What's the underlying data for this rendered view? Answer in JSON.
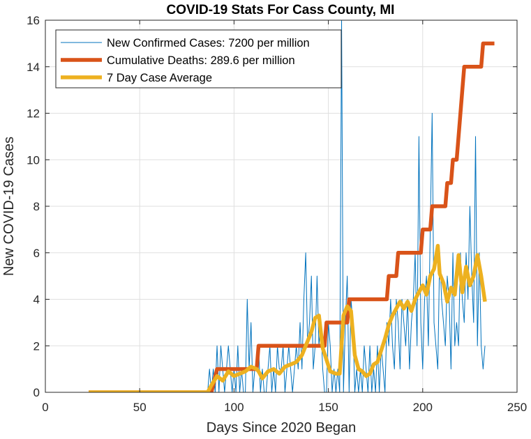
{
  "chart_data": {
    "type": "line",
    "title": "COVID-19 Stats For Cass County, MI",
    "xlabel": "Days Since 2020 Began",
    "ylabel": "New COVID-19 Cases",
    "xlim": [
      0,
      250
    ],
    "ylim": [
      0,
      16
    ],
    "xticks": [
      "0",
      "50",
      "100",
      "150",
      "200",
      "250"
    ],
    "yticks": [
      "0",
      "2",
      "4",
      "6",
      "8",
      "10",
      "12",
      "14",
      "16"
    ],
    "grid": true,
    "legend_position": "top-left",
    "series": [
      {
        "name": "New Confirmed Cases: 7200 per million",
        "color": "#0072BD",
        "style": "thin",
        "points": [
          [
            23,
            0
          ],
          [
            85,
            0
          ],
          [
            86,
            0
          ],
          [
            87,
            1
          ],
          [
            88,
            0
          ],
          [
            89,
            1
          ],
          [
            90,
            0
          ],
          [
            91,
            2
          ],
          [
            92,
            0
          ],
          [
            93,
            2
          ],
          [
            94,
            1
          ],
          [
            95,
            0
          ],
          [
            96,
            1
          ],
          [
            97,
            2
          ],
          [
            98,
            1
          ],
          [
            99,
            0
          ],
          [
            100,
            1
          ],
          [
            101,
            0
          ],
          [
            102,
            2
          ],
          [
            103,
            0
          ],
          [
            104,
            1
          ],
          [
            105,
            0
          ],
          [
            106,
            0
          ],
          [
            107,
            4
          ],
          [
            108,
            1
          ],
          [
            109,
            3
          ],
          [
            110,
            0
          ],
          [
            111,
            1
          ],
          [
            112,
            1
          ],
          [
            113,
            2
          ],
          [
            114,
            0
          ],
          [
            115,
            1
          ],
          [
            116,
            0
          ],
          [
            117,
            0
          ],
          [
            118,
            1
          ],
          [
            119,
            2
          ],
          [
            120,
            0
          ],
          [
            121,
            1
          ],
          [
            122,
            0
          ],
          [
            123,
            2
          ],
          [
            124,
            1
          ],
          [
            125,
            1
          ],
          [
            126,
            2
          ],
          [
            127,
            0
          ],
          [
            128,
            1
          ],
          [
            129,
            2
          ],
          [
            130,
            1
          ],
          [
            131,
            0
          ],
          [
            132,
            1
          ],
          [
            133,
            2
          ],
          [
            134,
            1
          ],
          [
            135,
            3
          ],
          [
            136,
            1
          ],
          [
            137,
            4
          ],
          [
            138,
            6
          ],
          [
            139,
            2
          ],
          [
            140,
            3
          ],
          [
            141,
            5
          ],
          [
            142,
            1
          ],
          [
            143,
            2
          ],
          [
            144,
            5
          ],
          [
            145,
            2
          ],
          [
            146,
            3
          ],
          [
            147,
            1
          ],
          [
            148,
            0
          ],
          [
            149,
            0
          ],
          [
            150,
            3
          ],
          [
            151,
            2
          ],
          [
            152,
            0
          ],
          [
            153,
            1
          ],
          [
            154,
            0
          ],
          [
            155,
            1
          ],
          [
            156,
            0
          ],
          [
            157,
            16
          ],
          [
            158,
            0
          ],
          [
            159,
            3
          ],
          [
            160,
            5
          ],
          [
            161,
            0
          ],
          [
            162,
            4
          ],
          [
            163,
            3
          ],
          [
            164,
            0
          ],
          [
            165,
            1
          ],
          [
            166,
            0
          ],
          [
            167,
            1
          ],
          [
            168,
            0
          ],
          [
            169,
            2
          ],
          [
            170,
            1
          ],
          [
            171,
            0
          ],
          [
            172,
            2
          ],
          [
            173,
            0
          ],
          [
            174,
            1
          ],
          [
            175,
            0
          ],
          [
            176,
            2
          ],
          [
            177,
            0
          ],
          [
            178,
            2
          ],
          [
            179,
            1
          ],
          [
            180,
            0
          ],
          [
            181,
            3
          ],
          [
            182,
            2
          ],
          [
            183,
            4
          ],
          [
            184,
            2
          ],
          [
            185,
            1
          ],
          [
            186,
            4
          ],
          [
            187,
            3
          ],
          [
            188,
            1
          ],
          [
            189,
            4
          ],
          [
            190,
            3
          ],
          [
            191,
            2
          ],
          [
            192,
            4
          ],
          [
            193,
            1
          ],
          [
            194,
            3
          ],
          [
            195,
            4
          ],
          [
            196,
            6
          ],
          [
            197,
            2
          ],
          [
            198,
            11
          ],
          [
            199,
            3
          ],
          [
            200,
            1
          ],
          [
            201,
            4
          ],
          [
            202,
            5
          ],
          [
            203,
            2
          ],
          [
            204,
            7
          ],
          [
            205,
            12
          ],
          [
            206,
            3
          ],
          [
            207,
            2
          ],
          [
            208,
            1
          ],
          [
            209,
            6
          ],
          [
            210,
            4
          ],
          [
            211,
            3
          ],
          [
            212,
            2
          ],
          [
            213,
            5
          ],
          [
            214,
            4
          ],
          [
            215,
            1
          ],
          [
            216,
            6
          ],
          [
            217,
            2
          ],
          [
            218,
            3
          ],
          [
            219,
            2
          ],
          [
            220,
            6
          ],
          [
            221,
            4
          ],
          [
            222,
            3
          ],
          [
            223,
            6
          ],
          [
            224,
            4
          ],
          [
            225,
            8
          ],
          [
            226,
            5
          ],
          [
            227,
            3
          ],
          [
            228,
            11
          ],
          [
            229,
            2
          ],
          [
            230,
            6
          ],
          [
            231,
            2
          ],
          [
            232,
            1
          ],
          [
            233,
            2
          ]
        ]
      },
      {
        "name": "Cumulative Deaths: 289.6 per million",
        "color": "#D95319",
        "style": "thick",
        "points": [
          [
            23,
            0
          ],
          [
            88,
            0
          ],
          [
            91,
            1
          ],
          [
            112,
            1
          ],
          [
            113,
            2
          ],
          [
            148,
            2
          ],
          [
            149,
            3
          ],
          [
            160,
            3
          ],
          [
            161,
            4
          ],
          [
            181,
            4
          ],
          [
            182,
            5
          ],
          [
            186,
            5
          ],
          [
            187,
            6
          ],
          [
            199,
            6
          ],
          [
            200,
            7
          ],
          [
            204,
            7
          ],
          [
            205,
            8
          ],
          [
            212,
            8
          ],
          [
            213,
            9
          ],
          [
            215,
            9
          ],
          [
            216,
            10
          ],
          [
            218,
            10
          ],
          [
            219,
            11
          ],
          [
            220,
            12
          ],
          [
            221,
            13
          ],
          [
            222,
            14
          ],
          [
            231,
            14
          ],
          [
            232,
            15
          ],
          [
            238,
            15
          ]
        ]
      },
      {
        "name": "7 Day Case Average",
        "color": "#EDB120",
        "style": "thick",
        "points": [
          [
            23,
            0
          ],
          [
            86,
            0
          ],
          [
            88,
            0.3
          ],
          [
            91,
            0.7
          ],
          [
            94,
            0.5
          ],
          [
            97,
            0.9
          ],
          [
            100,
            0.7
          ],
          [
            103,
            0.8
          ],
          [
            106,
            0.9
          ],
          [
            109,
            1.1
          ],
          [
            112,
            1.0
          ],
          [
            113,
            0.9
          ],
          [
            115,
            0.6
          ],
          [
            118,
            0.9
          ],
          [
            121,
            1.0
          ],
          [
            124,
            0.8
          ],
          [
            127,
            1.1
          ],
          [
            130,
            1.2
          ],
          [
            133,
            1.3
          ],
          [
            136,
            1.6
          ],
          [
            138,
            2.0
          ],
          [
            141,
            2.6
          ],
          [
            143,
            3.2
          ],
          [
            145,
            3.3
          ],
          [
            147,
            1.9
          ],
          [
            149,
            1.4
          ],
          [
            151,
            0.9
          ],
          [
            154,
            0.8
          ],
          [
            156,
            0.8
          ],
          [
            158,
            3.3
          ],
          [
            160,
            3.7
          ],
          [
            162,
            3.5
          ],
          [
            164,
            1.6
          ],
          [
            166,
            1.0
          ],
          [
            168,
            0.9
          ],
          [
            170,
            0.7
          ],
          [
            172,
            0.8
          ],
          [
            174,
            1.2
          ],
          [
            176,
            1.3
          ],
          [
            178,
            1.8
          ],
          [
            180,
            2.3
          ],
          [
            182,
            2.9
          ],
          [
            184,
            3.3
          ],
          [
            186,
            3.6
          ],
          [
            188,
            3.9
          ],
          [
            190,
            3.6
          ],
          [
            192,
            3.9
          ],
          [
            194,
            3.5
          ],
          [
            196,
            4.0
          ],
          [
            198,
            4.3
          ],
          [
            200,
            4.6
          ],
          [
            202,
            4.2
          ],
          [
            204,
            5.0
          ],
          [
            206,
            5.3
          ],
          [
            208,
            6.3
          ],
          [
            209,
            5.1
          ],
          [
            211,
            4.7
          ],
          [
            213,
            3.9
          ],
          [
            215,
            4.5
          ],
          [
            217,
            4.2
          ],
          [
            219,
            5.9
          ],
          [
            221,
            4.3
          ],
          [
            223,
            5.4
          ],
          [
            225,
            4.6
          ],
          [
            227,
            5.0
          ],
          [
            229,
            5.9
          ],
          [
            231,
            5.0
          ],
          [
            233,
            3.9
          ]
        ]
      }
    ]
  }
}
